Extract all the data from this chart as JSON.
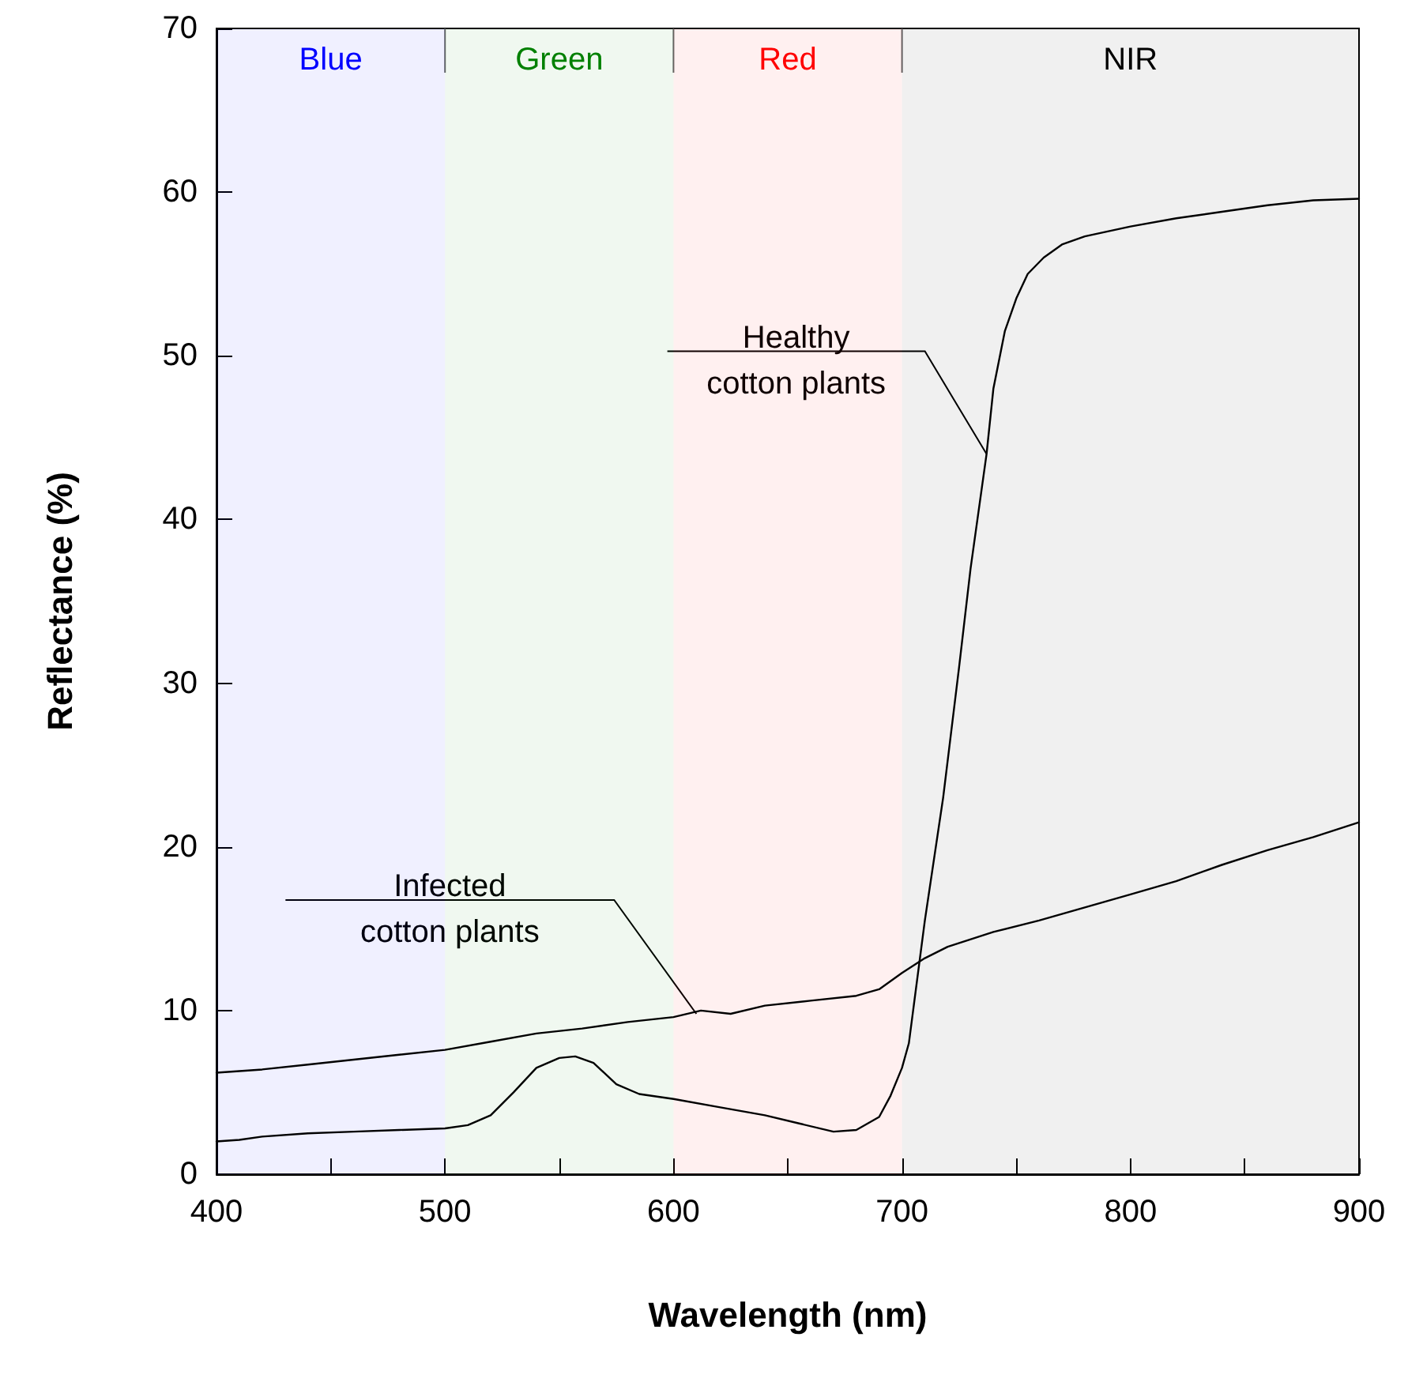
{
  "chart_data": {
    "type": "line",
    "xlabel": "Wavelength (nm)",
    "ylabel": "Reflectance (%)",
    "x": [
      400,
      410,
      420,
      440,
      460,
      480,
      500,
      510,
      520,
      530,
      540,
      550,
      557,
      565,
      575,
      585,
      600,
      620,
      640,
      655,
      670,
      680,
      690,
      695,
      700,
      703,
      710,
      718,
      725,
      730,
      737,
      740,
      745,
      750,
      755,
      762,
      770,
      780,
      800,
      820,
      840,
      860,
      880,
      900
    ],
    "series": [
      {
        "color": "#000000",
        "values": [
          2.0,
          2.1,
          2.3,
          2.5,
          2.6,
          2.7,
          2.8,
          3.0,
          3.6,
          5.0,
          6.5,
          7.1,
          7.2,
          6.8,
          5.5,
          4.9,
          4.6,
          4.1,
          3.6,
          3.1,
          2.6,
          2.7,
          3.5,
          4.8,
          6.5,
          8.0,
          15.5,
          23.0,
          31.0,
          37.0,
          44.0,
          48.0,
          51.5,
          53.5,
          55.0,
          56.0,
          56.8,
          57.3,
          57.9,
          58.4,
          58.8,
          59.2,
          59.5,
          59.6
        ]
      },
      {
        "color": "#000000",
        "x": [
          400,
          420,
          440,
          460,
          480,
          500,
          520,
          540,
          560,
          580,
          600,
          612,
          625,
          640,
          660,
          680,
          690,
          700,
          710,
          720,
          740,
          760,
          780,
          800,
          820,
          840,
          860,
          880,
          900
        ],
        "values": [
          6.2,
          6.4,
          6.7,
          7.0,
          7.3,
          7.6,
          8.1,
          8.6,
          8.9,
          9.3,
          9.6,
          10.0,
          9.8,
          10.3,
          10.6,
          10.9,
          11.3,
          12.3,
          13.2,
          13.9,
          14.8,
          15.5,
          16.3,
          17.1,
          17.9,
          18.9,
          19.8,
          20.6,
          21.5
        ]
      }
    ],
    "annotations": [
      {
        "text": "Healthy\ncotton plants",
        "x": 737,
        "y": 44
      },
      {
        "text": "Infected\ncotton plants",
        "x": 610,
        "y": 9.8
      }
    ],
    "bands": [
      {
        "axis": "x",
        "from": 400,
        "to": 500,
        "label": "Blue",
        "color": "#0000ff"
      },
      {
        "axis": "x",
        "from": 500,
        "to": 600,
        "label": "Green",
        "color": "#008000"
      },
      {
        "axis": "x",
        "from": 600,
        "to": 700,
        "label": "Red",
        "color": "#ff0000"
      },
      {
        "axis": "x",
        "from": 700,
        "to": 900,
        "label": "NIR",
        "color": "#000000"
      }
    ],
    "xlim": [
      400,
      900
    ],
    "xticks": [
      400,
      {
        "value": 450,
        "label": null
      },
      500,
      {
        "value": 550,
        "label": null
      },
      600,
      {
        "value": 650,
        "label": null
      },
      700,
      {
        "value": 750,
        "label": null
      },
      800,
      {
        "value": 850,
        "label": null
      },
      900
    ],
    "ylim": [
      0,
      70
    ],
    "yticks": [
      0,
      10,
      20,
      30,
      40,
      50,
      60,
      70
    ],
    "grid": false,
    "marker": "none",
    "line_style": "solid"
  }
}
